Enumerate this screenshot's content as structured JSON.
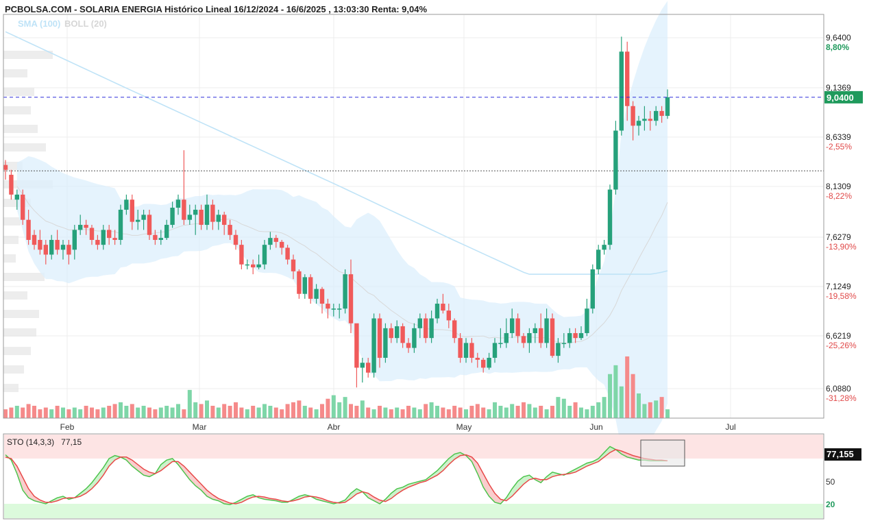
{
  "header": {
    "title": "PCBOLSA.COM - SOLARIA ENERGIA Histórico Lineal 16/12/2024 - 16/6/2025 , 13:03:30 Renta: 9,04%",
    "legend_sma": "SMA (100)",
    "legend_boll": "BOLL (20)"
  },
  "colors": {
    "up": "#26a17b",
    "down": "#f05a5a",
    "vol_up": "#7ed6a8",
    "vol_down": "#f58a8a",
    "sma": "#bfe3f7",
    "boll_band": "#dceffc",
    "price_line": "#2b2bd9",
    "sto_k": "#4cc44c",
    "sto_d": "#e84848"
  },
  "chart_data": {
    "type": "candlestick",
    "title": "PCBOLSA.COM - SOLARIA ENERGIA Histórico Lineal 16/12/2024 - 16/6/2025 , 13:03:30 Renta: 9,04%",
    "x_labels": [
      "Feb",
      "Mar",
      "Abr",
      "May",
      "Jun",
      "Jul"
    ],
    "y_ticks": [
      {
        "price": "9,6400",
        "pct": "8,80%"
      },
      {
        "price": "9,1369",
        "pct": "3,12%"
      },
      {
        "price": "8,6339",
        "pct": "-2,55%"
      },
      {
        "price": "8,1309",
        "pct": "-8,22%"
      },
      {
        "price": "7,6279",
        "pct": "-13,90%"
      },
      {
        "price": "7,1249",
        "pct": "-19,58%"
      },
      {
        "price": "6,6219",
        "pct": "-25,26%"
      },
      {
        "price": "6,0880",
        "pct": "-31,28%"
      }
    ],
    "ylim": [
      6.0,
      10.0
    ],
    "current_price": 9.04,
    "current_label": "9,0400",
    "reference_price": 8.29,
    "candles": [
      [
        8.35,
        8.3,
        8.4,
        8.2
      ],
      [
        8.25,
        8.05,
        8.3,
        8.0
      ],
      [
        8.0,
        8.05,
        8.1,
        7.9
      ],
      [
        8.05,
        7.8,
        8.1,
        7.75
      ],
      [
        7.8,
        7.6,
        7.9,
        7.55
      ],
      [
        7.65,
        7.55,
        7.7,
        7.5
      ],
      [
        7.6,
        7.5,
        7.7,
        7.45
      ],
      [
        7.55,
        7.45,
        7.6,
        7.35
      ],
      [
        7.45,
        7.6,
        7.65,
        7.4
      ],
      [
        7.6,
        7.5,
        7.7,
        7.45
      ],
      [
        7.5,
        7.55,
        7.6,
        7.4
      ],
      [
        7.55,
        7.45,
        7.6,
        7.35
      ],
      [
        7.5,
        7.7,
        7.75,
        7.4
      ],
      [
        7.7,
        7.75,
        7.85,
        7.65
      ],
      [
        7.75,
        7.72,
        7.8,
        7.65
      ],
      [
        7.72,
        7.6,
        7.75,
        7.55
      ],
      [
        7.6,
        7.55,
        7.65,
        7.5
      ],
      [
        7.55,
        7.7,
        7.75,
        7.5
      ],
      [
        7.7,
        7.62,
        7.75,
        7.55
      ],
      [
        7.62,
        7.6,
        7.7,
        7.55
      ],
      [
        7.6,
        7.9,
        7.95,
        7.55
      ],
      [
        7.9,
        8.0,
        8.05,
        7.85
      ],
      [
        8.0,
        7.78,
        8.05,
        7.7
      ],
      [
        7.78,
        7.8,
        7.9,
        7.7
      ],
      [
        7.8,
        7.85,
        7.9,
        7.7
      ],
      [
        7.85,
        7.65,
        7.9,
        7.6
      ],
      [
        7.65,
        7.6,
        7.7,
        7.55
      ],
      [
        7.6,
        7.62,
        7.7,
        7.55
      ],
      [
        7.62,
        7.75,
        7.8,
        7.6
      ],
      [
        7.75,
        7.92,
        7.98,
        7.72
      ],
      [
        7.92,
        8.0,
        8.05,
        7.85
      ],
      [
        8.0,
        7.8,
        8.5,
        7.75
      ],
      [
        7.8,
        7.85,
        7.95,
        7.75
      ],
      [
        7.85,
        7.9,
        7.95,
        7.65
      ],
      [
        7.9,
        7.75,
        7.95,
        7.7
      ],
      [
        7.75,
        7.95,
        8.05,
        7.7
      ],
      [
        7.95,
        7.78,
        8.0,
        7.7
      ],
      [
        7.78,
        7.85,
        7.9,
        7.7
      ],
      [
        7.85,
        7.75,
        7.88,
        7.65
      ],
      [
        7.75,
        7.65,
        7.8,
        7.6
      ],
      [
        7.65,
        7.55,
        7.7,
        7.5
      ],
      [
        7.55,
        7.35,
        7.6,
        7.3
      ],
      [
        7.35,
        7.35,
        7.4,
        7.3
      ],
      [
        7.35,
        7.32,
        7.4,
        7.25
      ],
      [
        7.32,
        7.35,
        7.45,
        7.3
      ],
      [
        7.35,
        7.55,
        7.6,
        7.3
      ],
      [
        7.55,
        7.62,
        7.68,
        7.5
      ],
      [
        7.62,
        7.58,
        7.65,
        7.52
      ],
      [
        7.58,
        7.52,
        7.6,
        7.45
      ],
      [
        7.52,
        7.4,
        7.55,
        7.35
      ],
      [
        7.4,
        7.28,
        7.45,
        7.2
      ],
      [
        7.28,
        7.05,
        7.3,
        7.0
      ],
      [
        7.05,
        7.22,
        7.25,
        7.0
      ],
      [
        7.22,
        7.0,
        7.25,
        6.95
      ],
      [
        7.0,
        7.1,
        7.15,
        6.95
      ],
      [
        7.1,
        6.95,
        7.12,
        6.85
      ],
      [
        6.95,
        6.9,
        7.0,
        6.8
      ],
      [
        6.9,
        6.9,
        6.95,
        6.82
      ],
      [
        6.9,
        6.9,
        6.95,
        6.8
      ],
      [
        6.9,
        7.25,
        7.3,
        6.85
      ],
      [
        7.25,
        6.75,
        7.4,
        6.65
      ],
      [
        6.75,
        6.3,
        6.5,
        6.1
      ],
      [
        6.3,
        6.35,
        6.4,
        6.15
      ],
      [
        6.35,
        6.25,
        6.4,
        6.2
      ],
      [
        6.25,
        6.8,
        6.85,
        6.2
      ],
      [
        6.8,
        6.4,
        6.85,
        6.3
      ],
      [
        6.4,
        6.7,
        6.75,
        6.35
      ],
      [
        6.7,
        6.6,
        6.75,
        6.55
      ],
      [
        6.6,
        6.72,
        6.78,
        6.55
      ],
      [
        6.72,
        6.55,
        6.75,
        6.5
      ],
      [
        6.55,
        6.5,
        6.6,
        6.45
      ],
      [
        6.5,
        6.7,
        6.75,
        6.45
      ],
      [
        6.7,
        6.8,
        6.85,
        6.6
      ],
      [
        6.8,
        6.6,
        6.85,
        6.55
      ],
      [
        6.6,
        6.8,
        6.88,
        6.55
      ],
      [
        6.8,
        6.95,
        7.0,
        6.75
      ],
      [
        6.95,
        6.88,
        7.05,
        6.85
      ],
      [
        6.88,
        6.78,
        6.95,
        6.7
      ],
      [
        6.78,
        6.6,
        6.8,
        6.55
      ],
      [
        6.6,
        6.4,
        6.65,
        6.35
      ],
      [
        6.4,
        6.55,
        6.6,
        6.35
      ],
      [
        6.55,
        6.4,
        6.6,
        6.35
      ],
      [
        6.4,
        6.38,
        6.45,
        6.3
      ],
      [
        6.38,
        6.3,
        6.4,
        6.25
      ],
      [
        6.3,
        6.4,
        6.45,
        6.28
      ],
      [
        6.4,
        6.55,
        6.6,
        6.35
      ],
      [
        6.55,
        6.55,
        6.7,
        6.5
      ],
      [
        6.55,
        6.65,
        6.8,
        6.5
      ],
      [
        6.65,
        6.8,
        6.9,
        6.6
      ],
      [
        6.8,
        6.62,
        6.85,
        6.55
      ],
      [
        6.62,
        6.55,
        6.65,
        6.5
      ],
      [
        6.55,
        6.65,
        6.7,
        6.45
      ],
      [
        6.65,
        6.7,
        6.75,
        6.55
      ],
      [
        6.7,
        6.55,
        6.85,
        6.5
      ],
      [
        6.55,
        6.8,
        6.9,
        6.5
      ],
      [
        6.8,
        6.42,
        6.85,
        6.4
      ],
      [
        6.42,
        6.55,
        6.6,
        6.35
      ],
      [
        6.55,
        6.55,
        6.65,
        6.5
      ],
      [
        6.55,
        6.65,
        6.7,
        6.5
      ],
      [
        6.65,
        6.6,
        6.7,
        6.55
      ],
      [
        6.6,
        6.65,
        6.72,
        6.58
      ],
      [
        6.65,
        6.9,
        7.0,
        6.62
      ],
      [
        6.9,
        7.3,
        7.35,
        6.85
      ],
      [
        7.3,
        7.5,
        7.55,
        7.25
      ],
      [
        7.5,
        7.55,
        7.6,
        7.45
      ],
      [
        7.55,
        8.1,
        8.15,
        7.5
      ],
      [
        8.1,
        8.7,
        8.8,
        8.05
      ],
      [
        8.7,
        9.5,
        9.65,
        8.65
      ],
      [
        9.5,
        8.95,
        9.6,
        8.8
      ],
      [
        8.95,
        8.75,
        9.0,
        8.6
      ],
      [
        8.75,
        8.8,
        8.85,
        8.65
      ],
      [
        8.8,
        8.82,
        8.95,
        8.7
      ],
      [
        8.82,
        8.8,
        8.9,
        8.7
      ],
      [
        8.8,
        8.9,
        8.95,
        8.75
      ],
      [
        8.9,
        8.85,
        8.95,
        8.78
      ],
      [
        8.85,
        9.04,
        9.12,
        8.82
      ]
    ],
    "volume": [
      5,
      6,
      7,
      6,
      8,
      7,
      5,
      6,
      5,
      7,
      6,
      5,
      6,
      5,
      7,
      6,
      5,
      6,
      7,
      8,
      9,
      7,
      8,
      6,
      7,
      6,
      5,
      6,
      7,
      6,
      8,
      5,
      16,
      9,
      8,
      10,
      7,
      6,
      8,
      7,
      9,
      6,
      5,
      7,
      6,
      8,
      7,
      6,
      5,
      8,
      9,
      10,
      7,
      6,
      5,
      8,
      11,
      13,
      9,
      12,
      8,
      7,
      10,
      6,
      5,
      7,
      6,
      5,
      6,
      5,
      7,
      6,
      5,
      8,
      9,
      7,
      6,
      5,
      7,
      6,
      5,
      7,
      8,
      6,
      5,
      9,
      7,
      6,
      8,
      7,
      9,
      8,
      6,
      7,
      5,
      7,
      12,
      11,
      7,
      9,
      6,
      5,
      7,
      9,
      12,
      25,
      30,
      18,
      35,
      25,
      14,
      8,
      9,
      10,
      12,
      5
    ],
    "sto_k": [
      85,
      78,
      60,
      38,
      28,
      24,
      22,
      20,
      24,
      28,
      30,
      26,
      28,
      34,
      40,
      48,
      58,
      68,
      80,
      84,
      82,
      78,
      70,
      64,
      58,
      56,
      60,
      72,
      78,
      80,
      72,
      62,
      52,
      44,
      38,
      30,
      26,
      24,
      20,
      19,
      22,
      26,
      30,
      32,
      28,
      26,
      25,
      24,
      22,
      22,
      26,
      30,
      32,
      30,
      26,
      24,
      22,
      20,
      22,
      25,
      34,
      40,
      36,
      28,
      24,
      20,
      26,
      34,
      40,
      42,
      46,
      48,
      50,
      52,
      58,
      64,
      72,
      80,
      86,
      88,
      84,
      76,
      60,
      42,
      30,
      22,
      20,
      28,
      40,
      50,
      56,
      58,
      52,
      48,
      56,
      62,
      60,
      58,
      62,
      66,
      70,
      74,
      76,
      80,
      88,
      96,
      92,
      86,
      82,
      80,
      78,
      78,
      77,
      77,
      77,
      77
    ],
    "sto_d": [
      82,
      80,
      70,
      55,
      40,
      30,
      25,
      22,
      22,
      24,
      27,
      28,
      28,
      30,
      34,
      40,
      48,
      58,
      70,
      78,
      82,
      82,
      78,
      72,
      66,
      62,
      60,
      64,
      70,
      76,
      76,
      70,
      62,
      54,
      46,
      38,
      32,
      27,
      24,
      21,
      20,
      22,
      26,
      29,
      30,
      29,
      27,
      26,
      24,
      23,
      24,
      26,
      29,
      30,
      29,
      27,
      24,
      22,
      21,
      22,
      27,
      33,
      36,
      34,
      29,
      25,
      23,
      27,
      33,
      38,
      42,
      45,
      48,
      50,
      54,
      58,
      64,
      72,
      79,
      84,
      85,
      82,
      74,
      60,
      46,
      34,
      26,
      24,
      30,
      38,
      46,
      52,
      54,
      52,
      52,
      56,
      58,
      59,
      60,
      62,
      66,
      70,
      73,
      76,
      82,
      88,
      92,
      90,
      87,
      84,
      82,
      80,
      79,
      78,
      78,
      77
    ],
    "sto_label": "STO (14,3,3)",
    "sto_value": "77,15",
    "sto_value_tag": "77,155",
    "sto_ticks": [
      "50",
      "20"
    ]
  }
}
